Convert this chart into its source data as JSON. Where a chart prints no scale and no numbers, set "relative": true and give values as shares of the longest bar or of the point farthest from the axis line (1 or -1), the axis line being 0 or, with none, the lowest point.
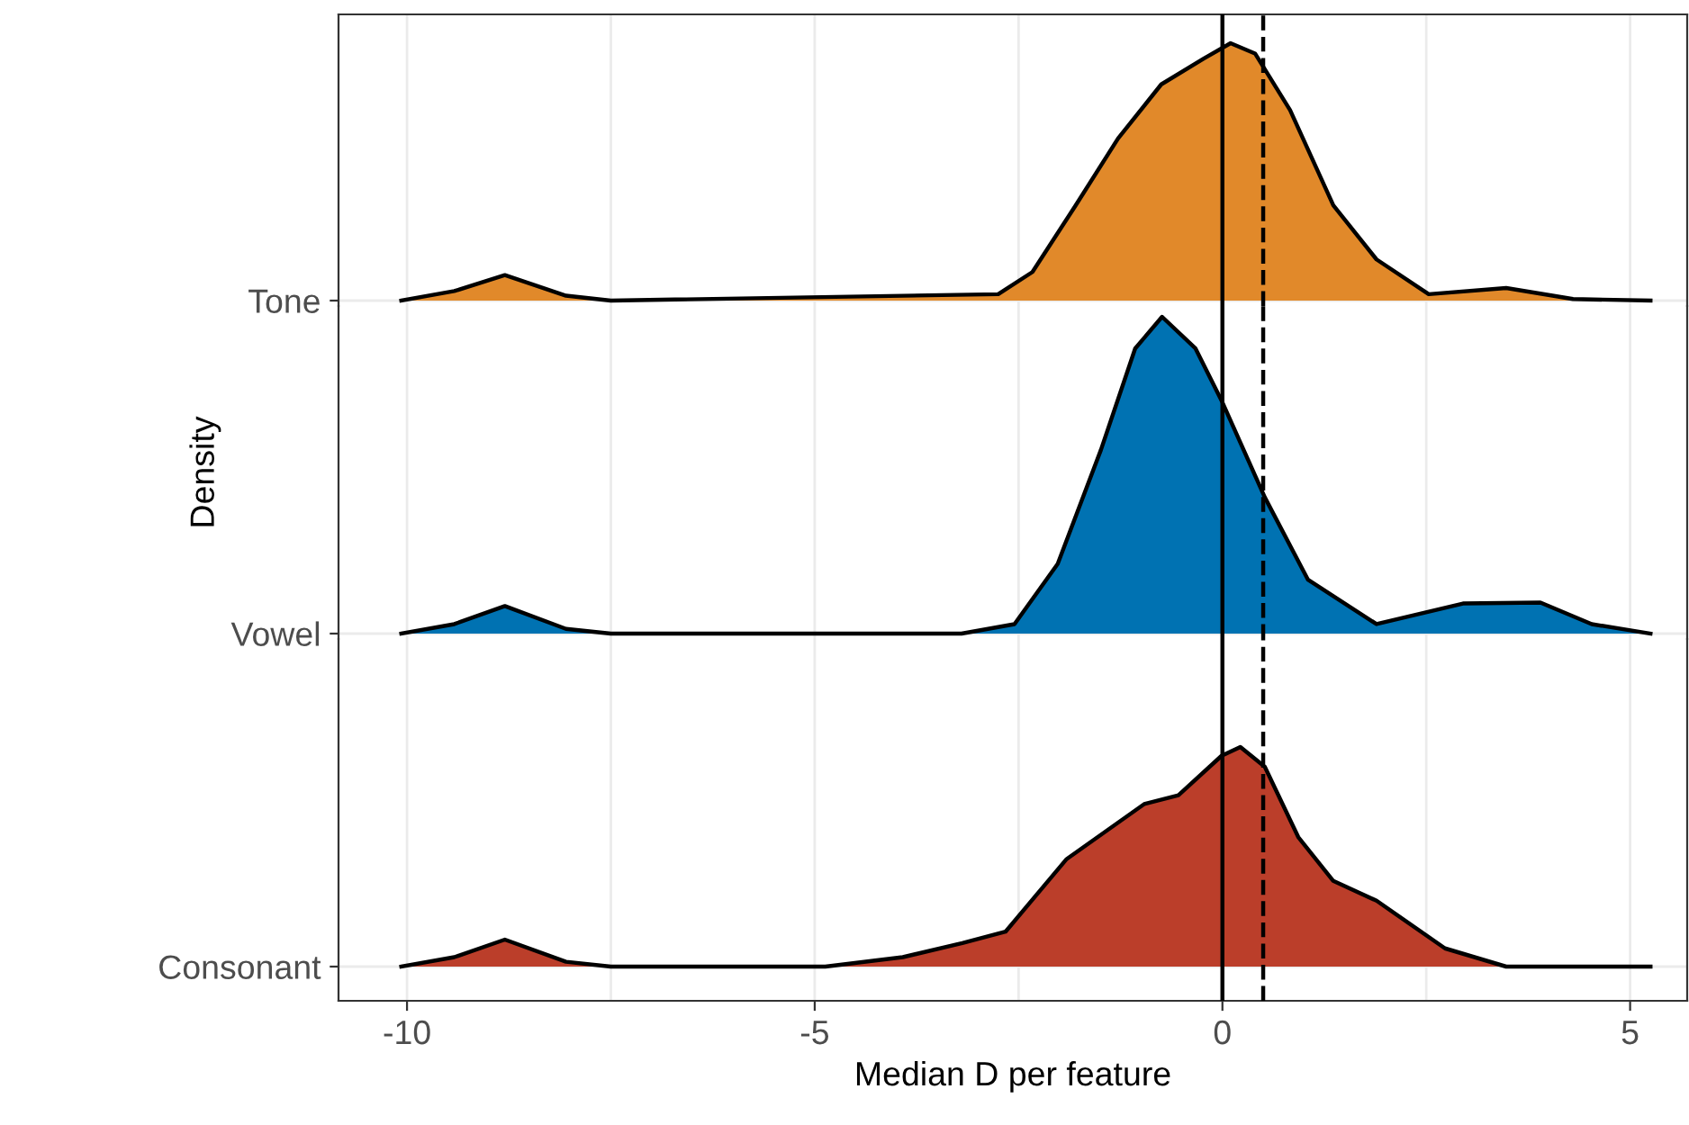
{
  "chart_data": [
    {
      "type": "area",
      "relative": true,
      "tick_labels": "y",
      "xlim": [
        -10.84,
        5.7
      ],
      "xticks": [
        -10,
        -5,
        0,
        5
      ],
      "grid": true,
      "series": [
        {
          "name": "Tone",
          "color": "#e1892a",
          "x": [
            -10.07,
            -9.42,
            -8.8,
            -8.05,
            -7.5,
            -2.75,
            -2.33,
            -1.8,
            -1.28,
            -0.75,
            -0.23,
            0.1,
            0.4,
            0.83,
            1.36,
            1.89,
            2.53,
            3.48,
            4.3,
            5.25
          ],
          "values": [
            0,
            0.037,
            0.099,
            0.019,
            0,
            0.025,
            0.111,
            0.37,
            0.63,
            0.84,
            0.94,
            1.0,
            0.96,
            0.74,
            0.37,
            0.16,
            0.025,
            0.049,
            0.006,
            0
          ]
        }
      ],
      "ref_lines": [
        {
          "axis": "x",
          "value": 0,
          "color": "#000000",
          "line_style": "solid"
        },
        {
          "axis": "x",
          "value": 0.5,
          "color": "#000000",
          "line_style": "dashed"
        }
      ]
    },
    {
      "type": "area",
      "relative": true,
      "tick_labels": "y",
      "ylabel": "Density",
      "xlim": [
        -10.84,
        5.7
      ],
      "xticks": [
        -10,
        -5,
        0,
        5
      ],
      "grid": true,
      "series": [
        {
          "name": "Vowel",
          "color": "#0072b2",
          "x": [
            -10.07,
            -9.42,
            -8.8,
            -8.05,
            -7.5,
            -3.2,
            -2.55,
            -2.02,
            -1.49,
            -1.07,
            -0.74,
            -0.33,
            0.0,
            0.52,
            1.05,
            1.89,
            2.95,
            3.9,
            4.53,
            5.25
          ],
          "values": [
            0,
            0.03,
            0.087,
            0.015,
            0,
            0,
            0.03,
            0.22,
            0.58,
            0.9,
            1.0,
            0.9,
            0.73,
            0.43,
            0.17,
            0.03,
            0.095,
            0.098,
            0.03,
            0
          ]
        }
      ],
      "ref_lines": [
        {
          "axis": "x",
          "value": 0,
          "color": "#000000",
          "line_style": "solid"
        },
        {
          "axis": "x",
          "value": 0.5,
          "color": "#000000",
          "line_style": "dashed"
        }
      ]
    },
    {
      "type": "area",
      "relative": true,
      "xlabel": "Median D per feature",
      "xlim": [
        -10.84,
        5.7
      ],
      "xticks": [
        -10,
        -5,
        0,
        5
      ],
      "grid": true,
      "series": [
        {
          "name": "Consonant",
          "color": "#bb3e2a",
          "x": [
            -10.07,
            -9.42,
            -8.8,
            -8.05,
            -7.5,
            -4.87,
            -3.92,
            -3.19,
            -2.66,
            -1.91,
            -0.96,
            -0.54,
            -0.01,
            0.22,
            0.52,
            0.93,
            1.36,
            1.89,
            2.73,
            3.48,
            5.25
          ],
          "values": [
            0,
            0.043,
            0.123,
            0.022,
            0,
            0,
            0.043,
            0.107,
            0.159,
            0.49,
            0.74,
            0.78,
            0.96,
            1.0,
            0.91,
            0.59,
            0.39,
            0.3,
            0.083,
            0,
            0
          ]
        }
      ],
      "ref_lines": [
        {
          "axis": "x",
          "value": 0,
          "color": "#000000",
          "line_style": "solid"
        },
        {
          "axis": "x",
          "value": 0.5,
          "color": "#000000",
          "line_style": "dashed"
        }
      ]
    }
  ]
}
